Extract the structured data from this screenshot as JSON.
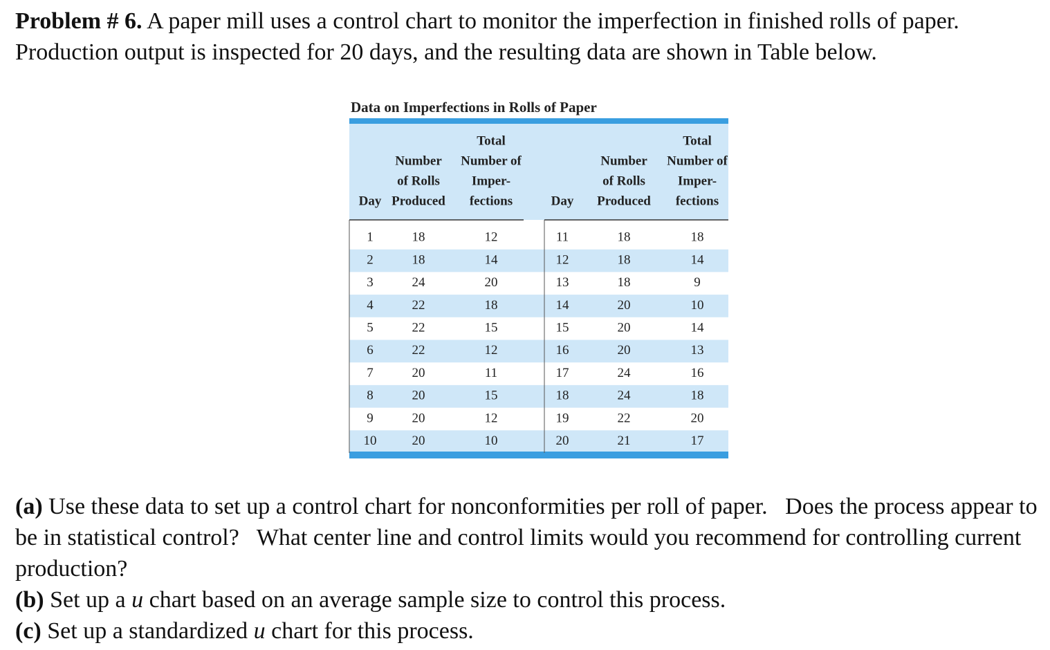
{
  "problem": {
    "label": "Problem # 6.",
    "text": "A paper mill uses a control chart to monitor the imperfection in finished rolls of paper.   Production output is inspected for 20 days, and the resulting data are shown in Table below."
  },
  "table": {
    "title": "Data on Imperfections in Rolls of Paper",
    "headers": [
      [
        "Day"
      ],
      [
        "Number",
        "of Rolls",
        "Produced"
      ],
      [
        "Total",
        "Number of",
        "Imper-",
        "fections"
      ],
      [
        "Day"
      ],
      [
        "Number",
        "of Rolls",
        "Produced"
      ],
      [
        "Total",
        "Number of",
        "Imper-",
        "fections"
      ]
    ],
    "rows": [
      [
        1,
        18,
        12,
        11,
        18,
        18
      ],
      [
        2,
        18,
        14,
        12,
        18,
        14
      ],
      [
        3,
        24,
        20,
        13,
        18,
        9
      ],
      [
        4,
        22,
        18,
        14,
        20,
        10
      ],
      [
        5,
        22,
        15,
        15,
        20,
        14
      ],
      [
        6,
        22,
        12,
        16,
        20,
        13
      ],
      [
        7,
        20,
        11,
        17,
        24,
        16
      ],
      [
        8,
        20,
        15,
        18,
        24,
        18
      ],
      [
        9,
        20,
        12,
        19,
        22,
        20
      ],
      [
        10,
        20,
        10,
        20,
        21,
        17
      ]
    ]
  },
  "questions": [
    {
      "label": "(a)",
      "parts": [
        "Use these data to set up a control chart for nonconformities per roll of paper.   Does the process appear to be in statistical control?   What center line and control limits would you recommend for controlling current production?"
      ]
    },
    {
      "label": "(b)",
      "parts": [
        "Set up a ",
        "u",
        " chart based on an average sample size to control this process."
      ]
    },
    {
      "label": "(c)",
      "parts": [
        "Set up a standardized ",
        "u",
        " chart for this process."
      ]
    }
  ]
}
